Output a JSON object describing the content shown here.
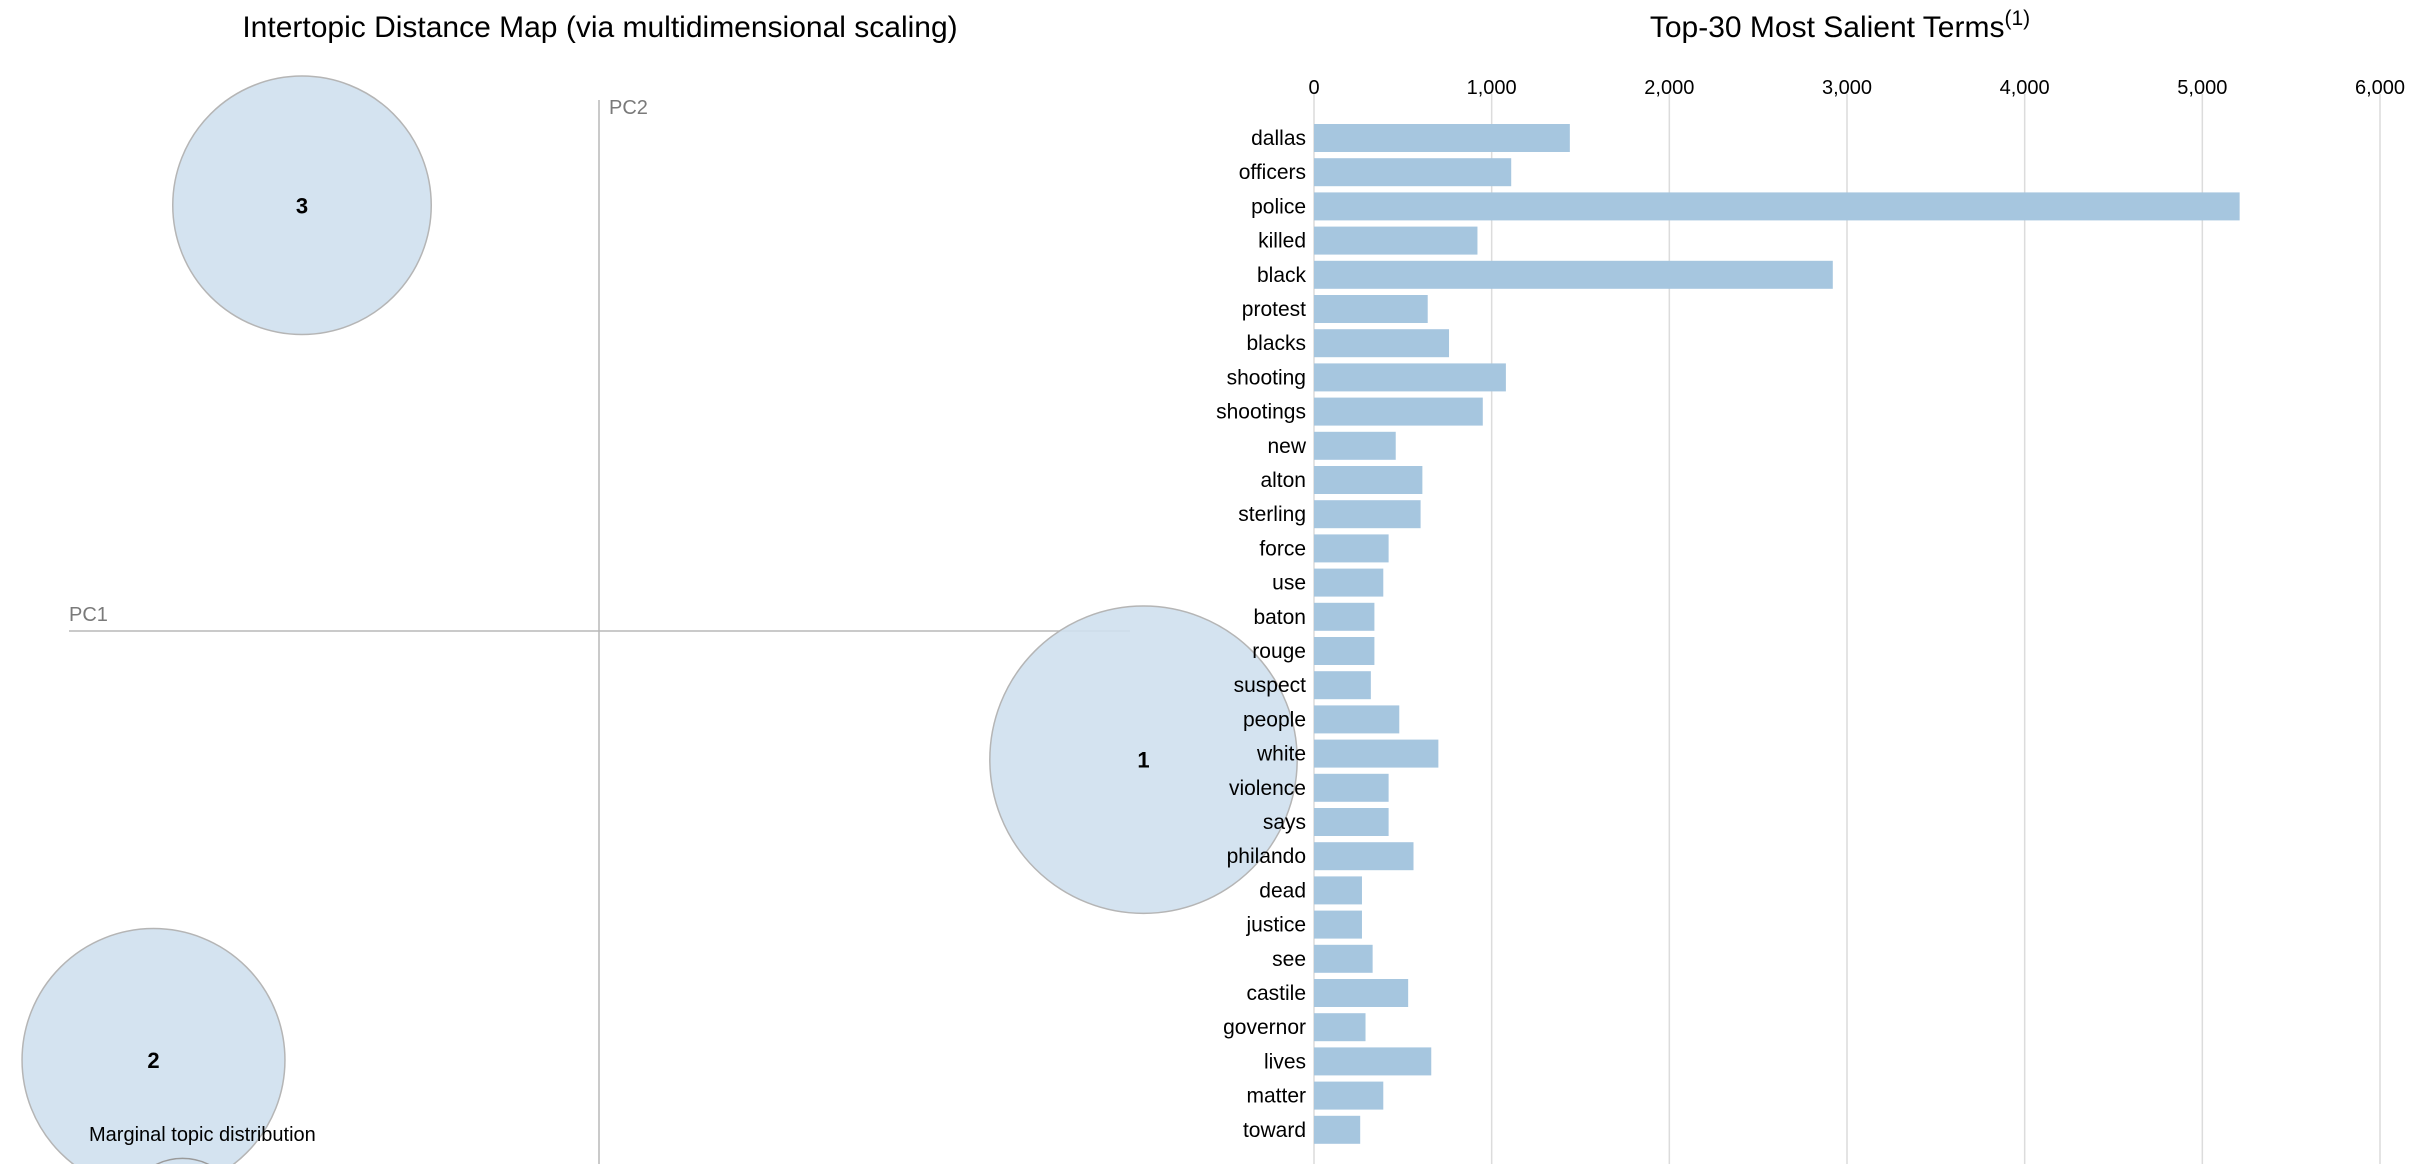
{
  "intertopic_map": {
    "title": "Intertopic Distance Map (via multidimensional scaling)",
    "pc1_label": "PC1",
    "pc2_label": "PC2",
    "legend_label": "Marginal topic distribution",
    "topics": [
      {
        "id": "1",
        "pc1": 0.165,
        "pc2": -0.039,
        "marginal_pct": 41
      },
      {
        "id": "2",
        "pc1": -0.135,
        "pc2": -0.13,
        "marginal_pct": 30
      },
      {
        "id": "3",
        "pc1": -0.09,
        "pc2": 0.129,
        "marginal_pct": 29
      }
    ],
    "colors": {
      "circle_fill": "#cfe0ee",
      "circle_stroke": "#b5b5b5",
      "axis_line": "#b8b8b8"
    }
  },
  "chart_data": {
    "type": "bar",
    "orientation": "horizontal",
    "title": "Top-30 Most Salient Terms",
    "title_superscript": "(1)",
    "categories": [
      "dallas",
      "officers",
      "police",
      "killed",
      "black",
      "protest",
      "blacks",
      "shooting",
      "shootings",
      "new",
      "alton",
      "sterling",
      "force",
      "use",
      "baton",
      "rouge",
      "suspect",
      "people",
      "white",
      "violence",
      "says",
      "philando",
      "dead",
      "justice",
      "see",
      "castile",
      "governor",
      "lives",
      "matter",
      "toward"
    ],
    "values": [
      1440,
      1110,
      5210,
      920,
      2920,
      640,
      760,
      1080,
      950,
      460,
      610,
      600,
      420,
      390,
      340,
      340,
      320,
      480,
      700,
      420,
      420,
      560,
      270,
      270,
      330,
      530,
      290,
      660,
      390,
      260
    ],
    "xlim": [
      0,
      6000
    ],
    "xticks": [
      0,
      1000,
      2000,
      3000,
      4000,
      5000,
      6000
    ],
    "xtick_labels": [
      "0",
      "1,000",
      "2,000",
      "3,000",
      "4,000",
      "5,000",
      "6,000"
    ],
    "grid": true,
    "colors": {
      "bar": "#a6c6df",
      "grid": "#dcdcdc"
    }
  }
}
